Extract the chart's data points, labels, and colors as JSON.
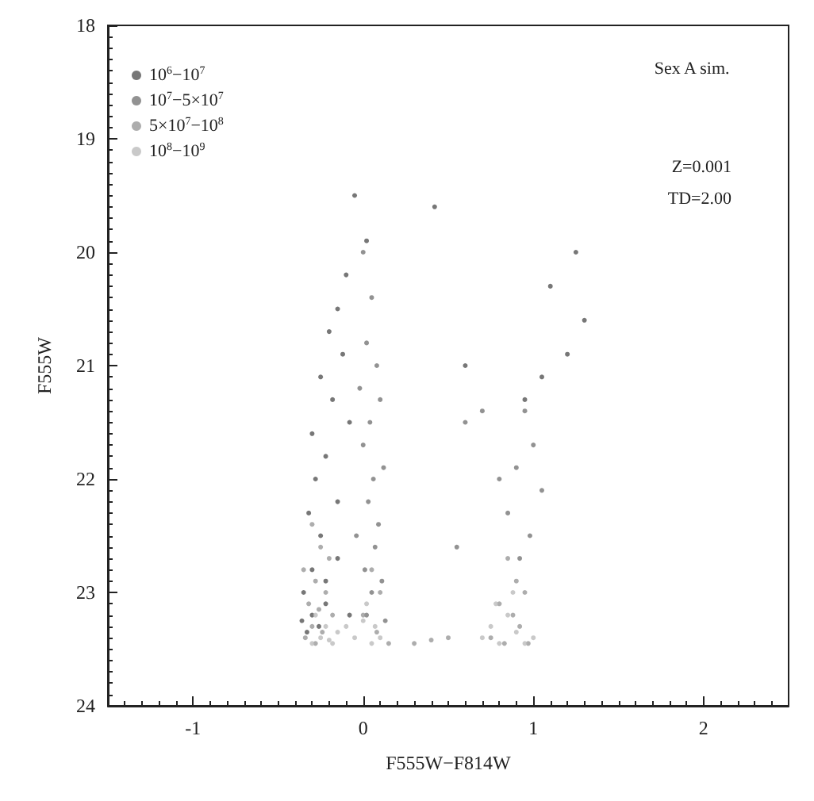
{
  "chart_data": {
    "type": "scatter",
    "xlabel": "F555W−F814W",
    "ylabel": "F555W",
    "annotations": [
      "Sex A sim.",
      "Z=0.001",
      "TD=2.00"
    ],
    "xlim": [
      -1.5,
      2.5
    ],
    "xticks": [
      -1,
      0,
      1,
      2
    ],
    "ylim": [
      24,
      18
    ],
    "yticks": [
      18,
      19,
      20,
      21,
      22,
      23,
      24
    ],
    "grid": false,
    "legend": "top left",
    "marker": "circle",
    "series": [
      {
        "name": "10$^{6}$−10$^{7}$",
        "color": "#555555",
        "x": [
          -0.05,
          0.02,
          -0.1,
          -0.15,
          -0.2,
          -0.12,
          -0.25,
          -0.18,
          -0.08,
          -0.3,
          -0.22,
          -0.28,
          -0.15,
          -0.32,
          -0.25,
          -0.15,
          -0.3,
          -0.22,
          -0.35,
          -0.22,
          -0.3,
          -0.26,
          -0.33,
          -0.08,
          -0.36,
          1.1,
          1.25,
          1.3,
          1.2,
          1.05,
          0.95,
          0.42,
          0.6
        ],
        "values": [
          19.5,
          19.9,
          20.2,
          20.5,
          20.7,
          20.9,
          21.1,
          21.3,
          21.5,
          21.6,
          21.8,
          22.0,
          22.2,
          22.3,
          22.5,
          22.7,
          22.8,
          22.9,
          23.0,
          23.1,
          23.2,
          23.3,
          23.35,
          23.2,
          23.25,
          20.3,
          20.0,
          20.6,
          20.9,
          21.1,
          21.3,
          19.6,
          21.0
        ]
      },
      {
        "name": "10$^{7}$−5×10$^{7}$",
        "color": "#777777",
        "x": [
          0.0,
          0.05,
          0.02,
          0.08,
          -0.02,
          0.1,
          0.04,
          0.0,
          0.12,
          0.06,
          0.03,
          0.09,
          -0.04,
          0.07,
          0.01,
          0.11,
          0.05,
          0.02,
          0.13,
          0.95,
          1.0,
          0.9,
          1.05,
          0.85,
          0.98,
          0.92,
          0.7,
          0.6,
          0.8,
          0.55
        ],
        "values": [
          20.0,
          20.4,
          20.8,
          21.0,
          21.2,
          21.3,
          21.5,
          21.7,
          21.9,
          22.0,
          22.2,
          22.4,
          22.5,
          22.6,
          22.8,
          22.9,
          23.0,
          23.2,
          23.25,
          21.4,
          21.7,
          21.9,
          22.1,
          22.3,
          22.5,
          22.7,
          21.4,
          21.5,
          22.0,
          22.6
        ]
      },
      {
        "name": "5×10$^{7}$−10$^{8}$",
        "color": "#999999",
        "x": [
          -0.3,
          -0.25,
          -0.2,
          -0.35,
          -0.28,
          -0.22,
          -0.32,
          -0.26,
          -0.18,
          -0.3,
          -0.24,
          -0.34,
          -0.28,
          0.05,
          0.1,
          0.0,
          0.08,
          0.15,
          0.3,
          0.4,
          0.5,
          0.85,
          0.9,
          0.95,
          0.8,
          0.88,
          0.92,
          0.75,
          0.97,
          0.83
        ],
        "values": [
          22.4,
          22.6,
          22.7,
          22.8,
          22.9,
          23.0,
          23.1,
          23.15,
          23.2,
          23.3,
          23.35,
          23.4,
          23.45,
          22.8,
          23.0,
          23.2,
          23.35,
          23.45,
          23.45,
          23.42,
          23.4,
          22.7,
          22.9,
          23.0,
          23.1,
          23.2,
          23.3,
          23.4,
          23.45,
          23.45
        ]
      },
      {
        "name": "10$^{8}$−10$^{9}$",
        "color": "#bbbbbb",
        "x": [
          -0.3,
          -0.25,
          -0.2,
          -0.15,
          -0.1,
          -0.05,
          0.0,
          0.05,
          0.1,
          -0.28,
          -0.22,
          -0.18,
          0.02,
          0.07,
          0.7,
          0.75,
          0.8,
          0.85,
          0.9,
          0.95,
          1.0,
          0.78,
          0.88
        ],
        "values": [
          23.45,
          23.4,
          23.42,
          23.35,
          23.3,
          23.4,
          23.25,
          23.45,
          23.4,
          23.2,
          23.3,
          23.45,
          23.1,
          23.3,
          23.4,
          23.3,
          23.45,
          23.2,
          23.35,
          23.45,
          23.4,
          23.1,
          23.0
        ]
      }
    ]
  }
}
